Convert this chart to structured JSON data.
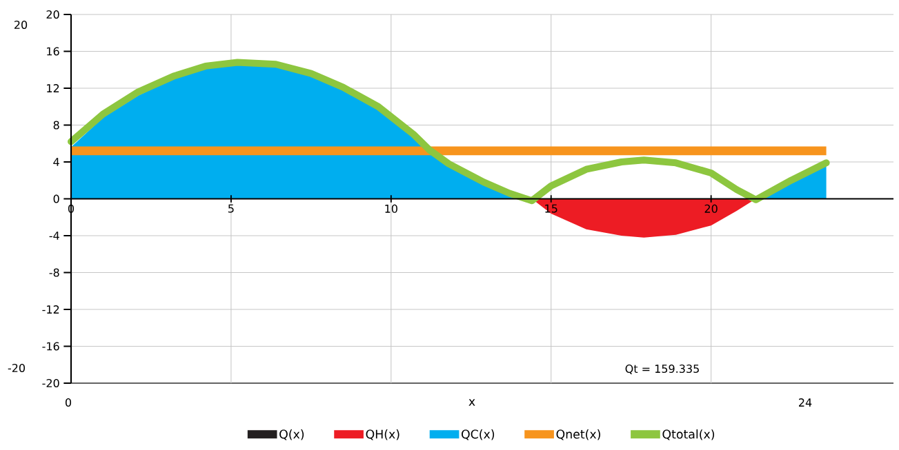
{
  "chart_data": {
    "type": "area",
    "xlabel": "x",
    "xlim": [
      0,
      25.7
    ],
    "ylim": [
      -20,
      20
    ],
    "xticks": [
      0,
      5,
      10,
      15,
      20
    ],
    "yticks": [
      -20,
      -16,
      -12,
      -8,
      -4,
      0,
      4,
      8,
      12,
      16,
      20
    ],
    "grid": true,
    "legend": "bottom",
    "annotations": [
      "20",
      "-20",
      "0",
      "24",
      "Qt = 159.335"
    ],
    "series": [
      {
        "name": "Q(x)",
        "type": "line",
        "color": "#231f20"
      },
      {
        "name": "QH(x)",
        "color": "#ed1c24",
        "x": [
          14.4,
          15,
          16.1,
          17.2,
          17.9,
          18.9,
          20,
          20.8,
          21.4
        ],
        "values": [
          0,
          -1.6,
          -3.3,
          -4.0,
          -4.2,
          -3.9,
          -2.9,
          -1.3,
          0
        ]
      },
      {
        "name": "QC(x)",
        "color": "#00aeef",
        "x": [
          0,
          1,
          2.1,
          3.2,
          4.2,
          5.2,
          6.4,
          7.5,
          8.5,
          9.6,
          10.7,
          11.2,
          11.8,
          12.9,
          13.7,
          14.2,
          21.6,
          22.5,
          23.6
        ],
        "values": [
          5.6,
          8.8,
          11.2,
          13.0,
          14.1,
          14.5,
          14.3,
          13.3,
          11.8,
          9.7,
          6.7,
          5.0,
          3.5,
          1.5,
          0.4,
          0,
          0,
          1.7,
          3.6
        ]
      },
      {
        "name": "Qnet(x)",
        "type": "line",
        "color": "#f7941d",
        "x": [
          0,
          23.6
        ],
        "values": [
          5.2,
          5.2
        ]
      },
      {
        "name": "Qtotal(x)",
        "type": "line",
        "color": "#8dc63f",
        "x": [
          0,
          1,
          2.1,
          3.2,
          4.2,
          5.2,
          6.4,
          7.5,
          8.5,
          9.6,
          10.7,
          11.2,
          11.8,
          12.9,
          13.7,
          14.4,
          15,
          16.1,
          17.2,
          17.9,
          18.9,
          20,
          20.8,
          21.4,
          22.5,
          23.6
        ],
        "values": [
          6.2,
          9.2,
          11.6,
          13.3,
          14.4,
          14.8,
          14.6,
          13.6,
          12.1,
          10.0,
          7.0,
          5.3,
          3.8,
          1.8,
          0.6,
          -0.2,
          1.4,
          3.2,
          4.0,
          4.2,
          3.9,
          2.8,
          1.0,
          -0.1,
          2.0,
          3.9
        ]
      }
    ]
  }
}
